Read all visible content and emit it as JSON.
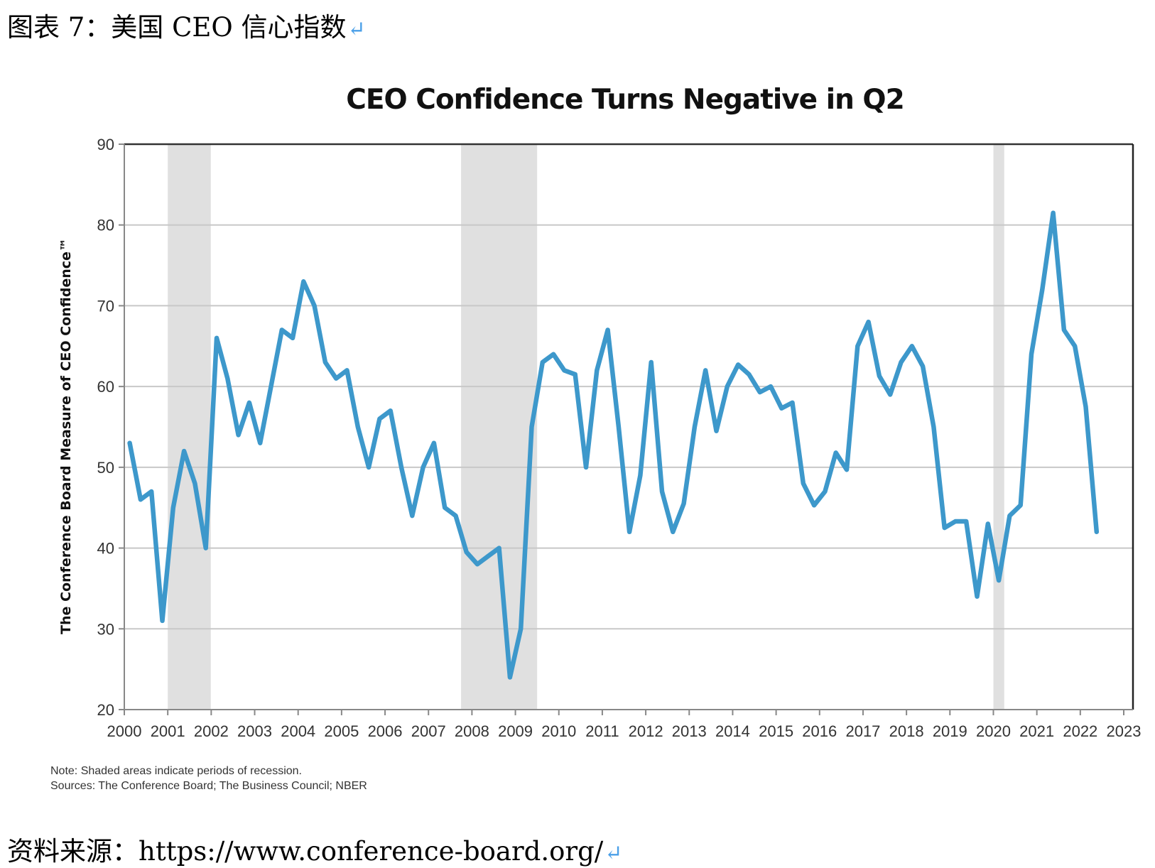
{
  "figure_title": "图表 7：美国 CEO 信心指数",
  "return_mark": "↵",
  "source_line": "资料来源：https://www.conference-board.org/",
  "notes": {
    "note": "Note: Shaded areas indicate periods of recession.",
    "sources": "Sources: The Conference Board; The Business Council; NBER"
  },
  "colors": {
    "line": "#3d98cb",
    "recession": "#e0e0e0",
    "grid": "#c8c8c8",
    "axis": "#888888"
  },
  "chart_data": {
    "type": "line",
    "title": "CEO Confidence Turns Negative in Q2",
    "xlabel": "",
    "ylabel": "The Conference Board Measure of CEO Confidence™",
    "xlim": [
      2000,
      2023
    ],
    "ylim": [
      20,
      90
    ],
    "yticks": [
      20,
      30,
      40,
      50,
      60,
      70,
      80,
      90
    ],
    "xticks": [
      "2000",
      "2001",
      "2002",
      "2003",
      "2004",
      "2005",
      "2006",
      "2007",
      "2008",
      "2009",
      "2010",
      "2011",
      "2012",
      "2013",
      "2014",
      "2015",
      "2016",
      "2017",
      "2018",
      "2019",
      "2020",
      "2021",
      "2022",
      "2023"
    ],
    "grid": true,
    "recessions": [
      {
        "start": 2001.0,
        "end": 2001.99
      },
      {
        "start": 2007.75,
        "end": 2009.5
      },
      {
        "start": 2020.0,
        "end": 2020.25
      }
    ],
    "series": [
      {
        "name": "CEO Confidence",
        "frequency": "quarterly",
        "start": 2000.125,
        "step": 0.25,
        "values": [
          53,
          46,
          47,
          31,
          45,
          52,
          48,
          40,
          66,
          61,
          54,
          58,
          53,
          60,
          67,
          66,
          73,
          70,
          63,
          61,
          62,
          55,
          50,
          56,
          57,
          50,
          44,
          50,
          53,
          45,
          44,
          39.5,
          38,
          39,
          40,
          24,
          30,
          55,
          63,
          64,
          62,
          61.5,
          50,
          62,
          67,
          55,
          42,
          49,
          63,
          47,
          42,
          45.5,
          55,
          62,
          54.5,
          60,
          62.7,
          61.5,
          59.3,
          60,
          57.3,
          58,
          48,
          45.3,
          47,
          51.8,
          49.7,
          65,
          68,
          61.3,
          59,
          63,
          65,
          62.5,
          55,
          42.5,
          43.3,
          43.3,
          34,
          43,
          36,
          44,
          45.3,
          64,
          72,
          81.5,
          67,
          65,
          57.5,
          42
        ]
      }
    ]
  }
}
